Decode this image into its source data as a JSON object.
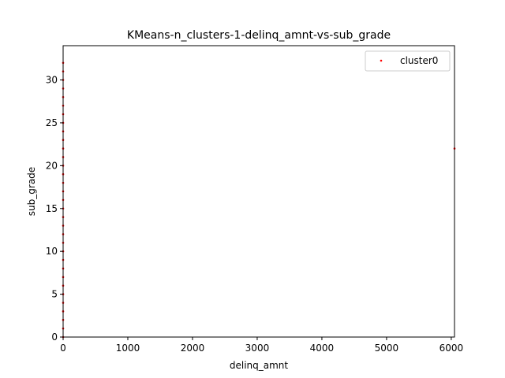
{
  "chart_data": {
    "type": "scatter",
    "title": "KMeans-n_clusters-1-delinq_amnt-vs-sub_grade",
    "xlabel": "delinq_amnt",
    "ylabel": "sub_grade",
    "xlim": [
      0,
      6050
    ],
    "ylim": [
      0,
      34
    ],
    "xticks": [
      0,
      1000,
      2000,
      3000,
      4000,
      5000,
      6000
    ],
    "yticks": [
      0,
      5,
      10,
      15,
      20,
      25,
      30
    ],
    "grid": false,
    "legend_position": "top-right",
    "series": [
      {
        "name": "cluster0",
        "color": "#ff0000",
        "x": [
          0,
          0,
          0,
          0,
          0,
          0,
          0,
          0,
          0,
          0,
          0,
          0,
          0,
          0,
          0,
          0,
          0,
          0,
          0,
          0,
          0,
          0,
          0,
          0,
          0,
          0,
          0,
          0,
          0,
          0,
          0,
          0,
          0,
          6050
        ],
        "y": [
          0,
          1,
          2,
          3,
          4,
          5,
          6,
          7,
          8,
          9,
          10,
          11,
          12,
          13,
          14,
          15,
          16,
          17,
          18,
          19,
          20,
          21,
          22,
          23,
          24,
          25,
          26,
          27,
          28,
          29,
          30,
          31,
          32,
          22
        ]
      }
    ]
  }
}
